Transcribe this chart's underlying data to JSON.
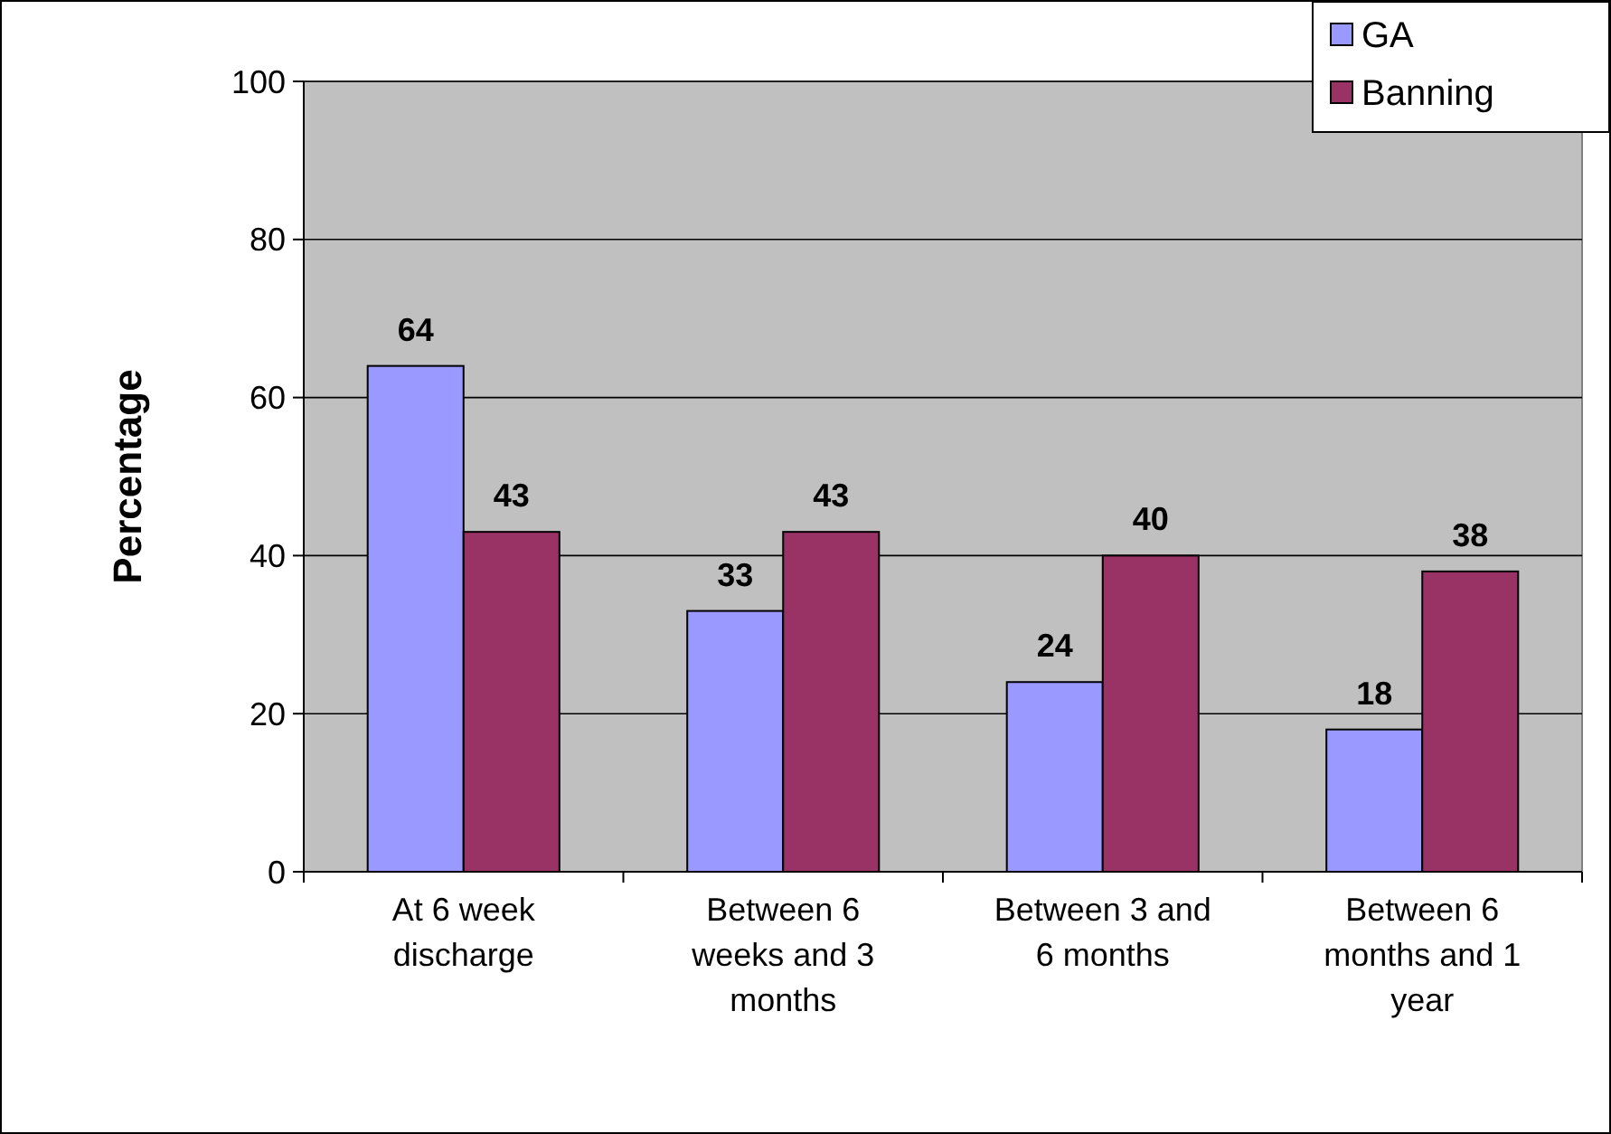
{
  "chart_data": {
    "type": "bar",
    "ylabel": "Percentage",
    "categories": [
      "At 6 week discharge",
      "Between 6 weeks and 3 months",
      "Between 3 and 6 months",
      "Between 6 months and 1 year"
    ],
    "series": [
      {
        "name": "GA",
        "color": "#9999ff",
        "values": [
          64,
          33,
          24,
          18
        ]
      },
      {
        "name": "Banning",
        "color": "#993366",
        "values": [
          43,
          43,
          40,
          38
        ]
      }
    ],
    "ylim": [
      0,
      100
    ],
    "yticks": [
      0,
      20,
      40,
      60,
      80,
      100
    ],
    "grid": "y",
    "legend": "top right",
    "data_labels": true
  }
}
